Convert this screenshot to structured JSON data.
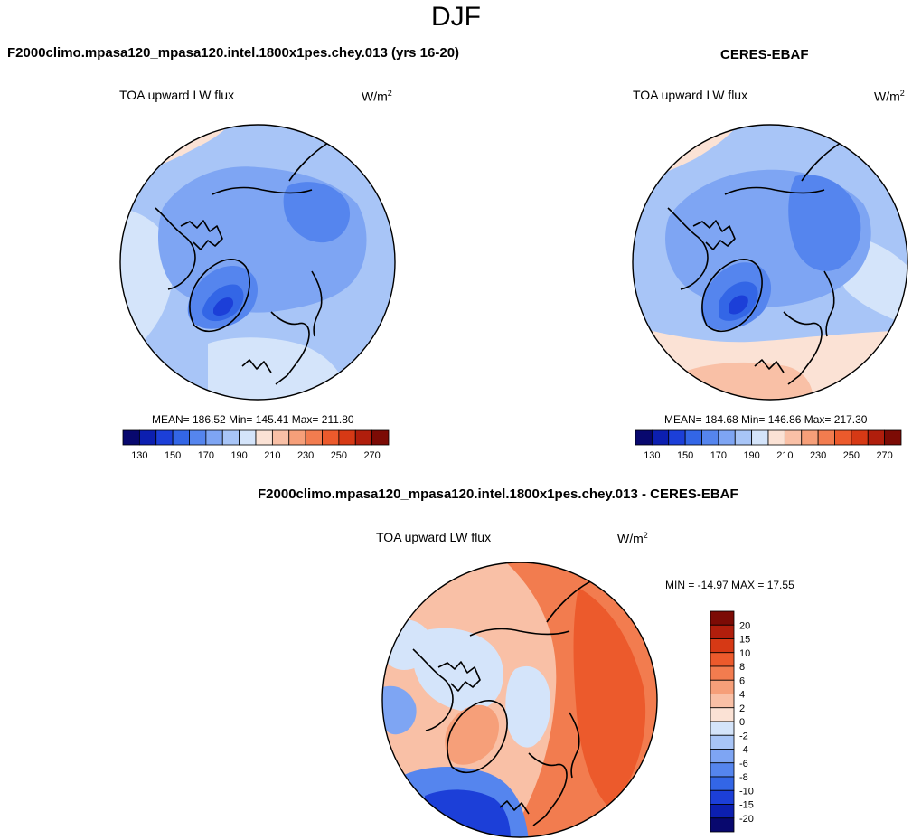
{
  "season": "DJF",
  "panels": [
    {
      "title": "F2000climo.mpasa120_mpasa120.intel.1800x1pes.chey.013 (yrs 16-20)",
      "variable": "TOA upward LW flux",
      "units_base": "W/m",
      "units_exp": "2",
      "stats": "MEAN= 186.52  Min= 145.41  Max= 211.80"
    },
    {
      "title": "CERES-EBAF",
      "variable": "TOA upward LW flux",
      "units_base": "W/m",
      "units_exp": "2",
      "stats": "MEAN= 184.68  Min= 146.86  Max= 217.30"
    },
    {
      "title": "F2000climo.mpasa120_mpasa120.intel.1800x1pes.chey.013 - CERES-EBAF",
      "variable": "TOA upward LW flux",
      "units_base": "W/m",
      "units_exp": "2",
      "stats": "MIN = -14.97 MAX =  17.55"
    }
  ],
  "chart_data": [
    {
      "type": "heatmap",
      "projection": "north polar stereographic",
      "title": "F2000climo.mpasa120_mpasa120.intel.1800x1pes.chey.013 (yrs 16-20)",
      "variable": "TOA upward LW flux",
      "units": "W/m2",
      "mean": 186.52,
      "min": 145.41,
      "max": 211.8,
      "colorbar": {
        "orientation": "horizontal",
        "tick_labels": [
          "130",
          "150",
          "170",
          "190",
          "210",
          "230",
          "250",
          "270"
        ],
        "levels": [
          130,
          140,
          150,
          160,
          170,
          180,
          190,
          200,
          210,
          220,
          230,
          240,
          250,
          260,
          270
        ],
        "colors": [
          "#08086e",
          "#0c1fb0",
          "#1c3fd8",
          "#3366e6",
          "#5585ee",
          "#7ea5f3",
          "#a8c5f7",
          "#d4e4fa",
          "#fbe2d5",
          "#f9c0a6",
          "#f69f79",
          "#f27c4f",
          "#ec5a2c",
          "#d63915",
          "#b01e0c",
          "#7c0b05"
        ]
      }
    },
    {
      "type": "heatmap",
      "projection": "north polar stereographic",
      "title": "CERES-EBAF",
      "variable": "TOA upward LW flux",
      "units": "W/m2",
      "mean": 184.68,
      "min": 146.86,
      "max": 217.3,
      "colorbar": {
        "orientation": "horizontal",
        "tick_labels": [
          "130",
          "150",
          "170",
          "190",
          "210",
          "230",
          "250",
          "270"
        ],
        "levels": [
          130,
          140,
          150,
          160,
          170,
          180,
          190,
          200,
          210,
          220,
          230,
          240,
          250,
          260,
          270
        ],
        "colors": [
          "#08086e",
          "#0c1fb0",
          "#1c3fd8",
          "#3366e6",
          "#5585ee",
          "#7ea5f3",
          "#a8c5f7",
          "#d4e4fa",
          "#fbe2d5",
          "#f9c0a6",
          "#f69f79",
          "#f27c4f",
          "#ec5a2c",
          "#d63915",
          "#b01e0c",
          "#7c0b05"
        ]
      }
    },
    {
      "type": "heatmap",
      "projection": "north polar stereographic",
      "title": "F2000climo.mpasa120_mpasa120.intel.1800x1pes.chey.013 - CERES-EBAF",
      "variable": "TOA upward LW flux",
      "units": "W/m2",
      "min": -14.97,
      "max": 17.55,
      "colorbar": {
        "orientation": "vertical",
        "tick_labels": [
          "20",
          "15",
          "10",
          "8",
          "6",
          "4",
          "2",
          "0",
          "-2",
          "-4",
          "-6",
          "-8",
          "-10",
          "-15",
          "-20"
        ],
        "colors": [
          "#7c0b05",
          "#b01e0c",
          "#d63915",
          "#ec5a2c",
          "#f27c4f",
          "#f69f79",
          "#f9c0a6",
          "#fbe2d5",
          "#d4e4fa",
          "#a8c5f7",
          "#7ea5f3",
          "#5585ee",
          "#3366e6",
          "#1c3fd8",
          "#0c1fb0",
          "#08086e"
        ]
      }
    }
  ]
}
